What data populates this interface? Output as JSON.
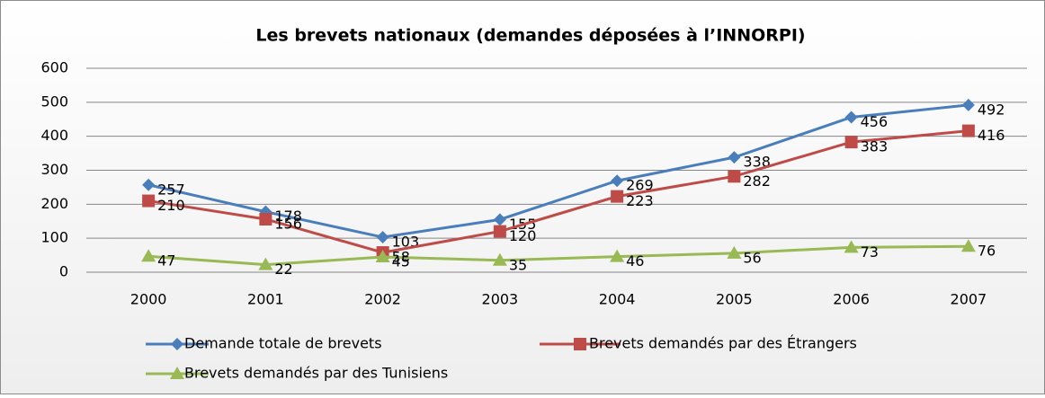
{
  "chart_data": {
    "type": "line",
    "title": "Les brevets nationaux (demandes déposées à l’INNORPI)",
    "categories": [
      "2000",
      "2001",
      "2002",
      "2003",
      "2004",
      "2005",
      "2006",
      "2007"
    ],
    "series": [
      {
        "name": "Demande totale de brevets",
        "color": "#4a7ebb",
        "marker": "diamond",
        "values": [
          257,
          178,
          103,
          155,
          269,
          338,
          456,
          492
        ]
      },
      {
        "name": "Brevets demandés par des Étrangers",
        "color": "#be4b48",
        "marker": "square",
        "values": [
          210,
          156,
          58,
          120,
          223,
          282,
          383,
          416
        ]
      },
      {
        "name": "Brevets demandés par des Tunisiens",
        "color": "#98b954",
        "marker": "triangle",
        "values": [
          47,
          22,
          45,
          35,
          46,
          56,
          73,
          76
        ]
      }
    ],
    "ylim": [
      0,
      600
    ],
    "yticks": [
      0,
      100,
      200,
      300,
      400,
      500,
      600
    ],
    "grid": true,
    "data_labels": true
  }
}
